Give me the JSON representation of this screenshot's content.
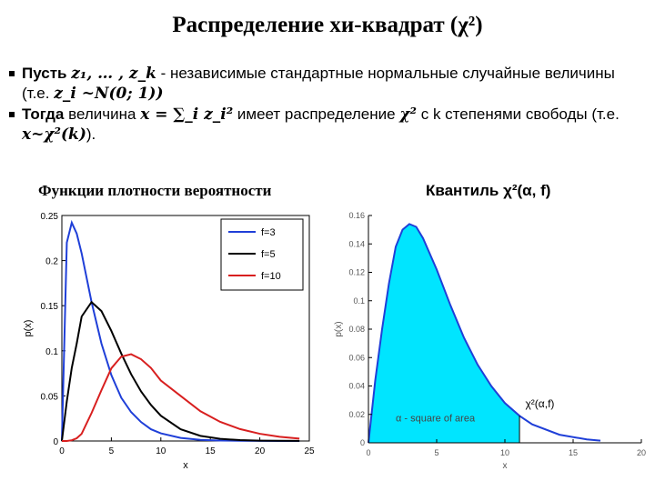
{
  "title": "Распределение хи-квадрат (χ²)",
  "bullets": {
    "b1_pusty": "Пусть",
    "b1_vars": "z₁, … , z_k",
    "b1_rest": "- независимые стандартные нормальные случайные величины (т.е.",
    "b1_math": "z_i ~N(0; 1))",
    "b2_togda": "Тогда",
    "b2_text1": "величина",
    "b2_math1": "x = ∑_i z_i²",
    "b2_text2": "имеет распределение",
    "b2_math2": "χ²",
    "b2_text3": "с k степенями свободы (т.е.",
    "b2_math3": "x~χ²(k)",
    "b2_end": ")."
  },
  "left_label": "Функции плотности вероятности",
  "right_label": "Квантиль χ²(α, f)",
  "chart_data": [
    {
      "type": "line",
      "xlabel": "x",
      "ylabel": "p(x)",
      "xlim": [
        0,
        25
      ],
      "ylim": [
        0,
        0.25
      ],
      "xticks": [
        "0",
        "5",
        "10",
        "15",
        "20",
        "25"
      ],
      "yticks": [
        "0",
        "0.05",
        "0.1",
        "0.15",
        "0.2",
        "0.25"
      ],
      "legend_position": "top-right",
      "series": [
        {
          "name": "f=3",
          "color": "#1f3fd8"
        },
        {
          "name": "f=5",
          "color": "#000000"
        },
        {
          "name": "f=10",
          "color": "#d81f1f"
        }
      ],
      "x": [
        0,
        0.5,
        1,
        1.5,
        2,
        3,
        4,
        5,
        6,
        7,
        8,
        9,
        10,
        12,
        14,
        16,
        18,
        20,
        22,
        24
      ],
      "values": [
        [
          0,
          0.22,
          0.242,
          0.23,
          0.208,
          0.154,
          0.108,
          0.073,
          0.048,
          0.032,
          0.021,
          0.013,
          0.0085,
          0.0034,
          0.0013,
          0.0005,
          0.0002,
          0.0001,
          0,
          0
        ],
        [
          0,
          0.044,
          0.081,
          0.108,
          0.138,
          0.154,
          0.144,
          0.122,
          0.097,
          0.074,
          0.055,
          0.04,
          0.028,
          0.013,
          0.0057,
          0.0024,
          0.001,
          0.0004,
          0.0002,
          0.0001
        ],
        [
          0,
          0,
          0.0008,
          0.003,
          0.008,
          0.031,
          0.0563,
          0.0806,
          0.0935,
          0.0962,
          0.0907,
          0.081,
          0.067,
          0.05,
          0.033,
          0.0212,
          0.0132,
          0.008,
          0.0047,
          0.0027
        ]
      ]
    },
    {
      "type": "area",
      "xlabel": "x",
      "ylabel": "p(x)",
      "xlim": [
        0,
        20
      ],
      "ylim": [
        0,
        0.16
      ],
      "xticks": [
        "0",
        "5",
        "10",
        "15",
        "20"
      ],
      "yticks": [
        "0",
        "0.02",
        "0.04",
        "0.06",
        "0.08",
        "0.1",
        "0.12",
        "0.14",
        "0.16"
      ],
      "fill_color": "#00e5ff",
      "line_color": "#1f3fd8",
      "shaded_to_x": 11.07,
      "annotation_area": "α - square of area",
      "annotation_quantile": "χ²(α,f)",
      "x": [
        0,
        0.5,
        1,
        1.5,
        2,
        2.5,
        3,
        3.5,
        4,
        5,
        6,
        7,
        8,
        9,
        10,
        11.07,
        12,
        14,
        16,
        17
      ],
      "values": [
        0,
        0.044,
        0.08,
        0.112,
        0.138,
        0.15,
        0.154,
        0.152,
        0.144,
        0.122,
        0.097,
        0.074,
        0.055,
        0.04,
        0.028,
        0.019,
        0.013,
        0.0057,
        0.0024,
        0.0015
      ]
    }
  ]
}
